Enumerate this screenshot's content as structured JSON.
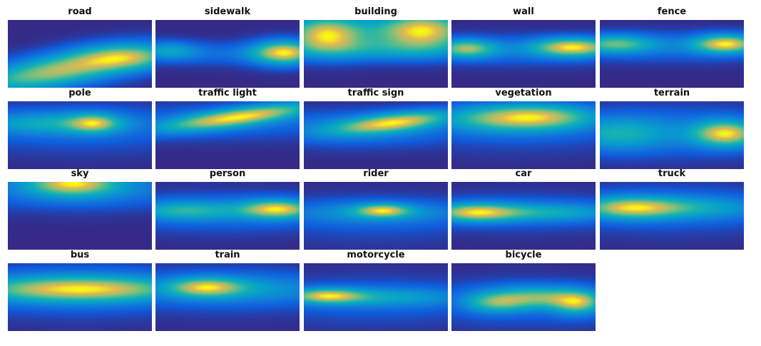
{
  "chart_data": {
    "type": "heatmap",
    "colormap": "parula",
    "value_range": [
      0,
      1
    ],
    "axes_visible": false,
    "panels": [
      {
        "title": "road",
        "blobs": [
          {
            "cx": 0.35,
            "cy": 0.75,
            "sx": 0.45,
            "sy": 0.18,
            "slope": -0.35,
            "a": 1.0
          },
          {
            "cx": 0.85,
            "cy": 0.55,
            "sx": 0.25,
            "sy": 0.14,
            "a": 0.6
          }
        ]
      },
      {
        "title": "sidewalk",
        "blobs": [
          {
            "cx": 0.9,
            "cy": 0.48,
            "sx": 0.16,
            "sy": 0.13,
            "a": 1.0
          },
          {
            "cx": 0.08,
            "cy": 0.45,
            "sx": 0.15,
            "sy": 0.1,
            "a": 0.45
          },
          {
            "cx": 0.5,
            "cy": 0.5,
            "sx": 0.5,
            "sy": 0.12,
            "a": 0.25
          }
        ]
      },
      {
        "title": "building",
        "blobs": [
          {
            "cx": 0.15,
            "cy": 0.2,
            "sx": 0.2,
            "sy": 0.2,
            "a": 0.95
          },
          {
            "cx": 0.82,
            "cy": 0.15,
            "sx": 0.25,
            "sy": 0.2,
            "a": 1.0
          },
          {
            "cx": 0.5,
            "cy": 0.45,
            "sx": 0.6,
            "sy": 0.12,
            "a": 0.35
          }
        ]
      },
      {
        "title": "wall",
        "blobs": [
          {
            "cx": 0.85,
            "cy": 0.4,
            "sx": 0.2,
            "sy": 0.1,
            "a": 1.0
          },
          {
            "cx": 0.1,
            "cy": 0.42,
            "sx": 0.15,
            "sy": 0.1,
            "a": 0.8
          },
          {
            "cx": 0.5,
            "cy": 0.45,
            "sx": 0.6,
            "sy": 0.15,
            "a": 0.3
          }
        ]
      },
      {
        "title": "fence",
        "blobs": [
          {
            "cx": 0.88,
            "cy": 0.35,
            "sx": 0.16,
            "sy": 0.1,
            "a": 1.0
          },
          {
            "cx": 0.1,
            "cy": 0.35,
            "sx": 0.2,
            "sy": 0.1,
            "a": 0.7
          },
          {
            "cx": 0.5,
            "cy": 0.4,
            "sx": 0.6,
            "sy": 0.15,
            "a": 0.3
          }
        ]
      },
      {
        "title": "pole",
        "blobs": [
          {
            "cx": 0.6,
            "cy": 0.32,
            "sx": 0.12,
            "sy": 0.1,
            "a": 1.0
          },
          {
            "cx": 0.3,
            "cy": 0.32,
            "sx": 0.4,
            "sy": 0.12,
            "a": 0.75
          },
          {
            "cx": 0.5,
            "cy": 0.4,
            "sx": 0.7,
            "sy": 0.25,
            "a": 0.4
          }
        ]
      },
      {
        "title": "traffic light",
        "blobs": [
          {
            "cx": 0.6,
            "cy": 0.22,
            "sx": 0.4,
            "sy": 0.1,
            "slope": -0.3,
            "a": 1.0
          },
          {
            "cx": 0.5,
            "cy": 0.3,
            "sx": 0.7,
            "sy": 0.18,
            "a": 0.3
          }
        ]
      },
      {
        "title": "traffic sign",
        "blobs": [
          {
            "cx": 0.65,
            "cy": 0.3,
            "sx": 0.3,
            "sy": 0.1,
            "slope": -0.25,
            "a": 1.0
          },
          {
            "cx": 0.4,
            "cy": 0.4,
            "sx": 0.6,
            "sy": 0.18,
            "a": 0.45
          }
        ]
      },
      {
        "title": "vegetation",
        "blobs": [
          {
            "cx": 0.65,
            "cy": 0.22,
            "sx": 0.3,
            "sy": 0.14,
            "a": 1.0
          },
          {
            "cx": 0.3,
            "cy": 0.25,
            "sx": 0.35,
            "sy": 0.15,
            "a": 0.85
          },
          {
            "cx": 0.5,
            "cy": 0.4,
            "sx": 0.7,
            "sy": 0.25,
            "a": 0.3
          }
        ]
      },
      {
        "title": "terrain",
        "blobs": [
          {
            "cx": 0.88,
            "cy": 0.48,
            "sx": 0.16,
            "sy": 0.14,
            "a": 1.0
          },
          {
            "cx": 0.1,
            "cy": 0.48,
            "sx": 0.25,
            "sy": 0.18,
            "a": 0.5
          },
          {
            "cx": 0.5,
            "cy": 0.45,
            "sx": 0.6,
            "sy": 0.25,
            "a": 0.35
          }
        ]
      },
      {
        "title": "sky",
        "blobs": [
          {
            "cx": 0.45,
            "cy": 0.0,
            "sx": 0.22,
            "sy": 0.14,
            "a": 1.0
          },
          {
            "cx": 0.5,
            "cy": 0.1,
            "sx": 0.6,
            "sy": 0.2,
            "a": 0.5
          }
        ]
      },
      {
        "title": "person",
        "blobs": [
          {
            "cx": 0.85,
            "cy": 0.4,
            "sx": 0.18,
            "sy": 0.1,
            "a": 1.0
          },
          {
            "cx": 0.2,
            "cy": 0.42,
            "sx": 0.25,
            "sy": 0.1,
            "a": 0.55
          },
          {
            "cx": 0.5,
            "cy": 0.45,
            "sx": 0.7,
            "sy": 0.2,
            "a": 0.35
          }
        ]
      },
      {
        "title": "rider",
        "blobs": [
          {
            "cx": 0.55,
            "cy": 0.42,
            "sx": 0.13,
            "sy": 0.07,
            "a": 1.0
          },
          {
            "cx": 0.5,
            "cy": 0.45,
            "sx": 0.45,
            "sy": 0.12,
            "a": 0.55
          },
          {
            "cx": 0.5,
            "cy": 0.55,
            "sx": 0.7,
            "sy": 0.25,
            "a": 0.25
          }
        ]
      },
      {
        "title": "car",
        "blobs": [
          {
            "cx": 0.15,
            "cy": 0.45,
            "sx": 0.2,
            "sy": 0.1,
            "a": 1.0
          },
          {
            "cx": 0.6,
            "cy": 0.45,
            "sx": 0.45,
            "sy": 0.1,
            "a": 0.7
          },
          {
            "cx": 0.5,
            "cy": 0.45,
            "sx": 0.7,
            "sy": 0.2,
            "a": 0.3
          }
        ]
      },
      {
        "title": "truck",
        "blobs": [
          {
            "cx": 0.2,
            "cy": 0.38,
            "sx": 0.25,
            "sy": 0.12,
            "a": 1.0
          },
          {
            "cx": 0.7,
            "cy": 0.38,
            "sx": 0.35,
            "sy": 0.12,
            "a": 0.45
          },
          {
            "cx": 0.5,
            "cy": 0.4,
            "sx": 0.7,
            "sy": 0.25,
            "a": 0.3
          }
        ]
      },
      {
        "title": "bus",
        "blobs": [
          {
            "cx": 0.5,
            "cy": 0.38,
            "sx": 0.55,
            "sy": 0.14,
            "a": 1.0
          },
          {
            "cx": 0.5,
            "cy": 0.4,
            "sx": 0.7,
            "sy": 0.28,
            "a": 0.3
          }
        ]
      },
      {
        "title": "train",
        "blobs": [
          {
            "cx": 0.35,
            "cy": 0.35,
            "sx": 0.18,
            "sy": 0.1,
            "a": 1.0
          },
          {
            "cx": 0.5,
            "cy": 0.38,
            "sx": 0.6,
            "sy": 0.15,
            "a": 0.55
          },
          {
            "cx": 0.5,
            "cy": 0.4,
            "sx": 0.7,
            "sy": 0.25,
            "a": 0.3
          }
        ]
      },
      {
        "title": "motorcycle",
        "blobs": [
          {
            "cx": 0.15,
            "cy": 0.48,
            "sx": 0.18,
            "sy": 0.08,
            "a": 1.0
          },
          {
            "cx": 0.55,
            "cy": 0.5,
            "sx": 0.45,
            "sy": 0.1,
            "a": 0.55
          },
          {
            "cx": 0.5,
            "cy": 0.55,
            "sx": 0.7,
            "sy": 0.25,
            "a": 0.3
          }
        ]
      },
      {
        "title": "bicycle",
        "blobs": [
          {
            "cx": 0.6,
            "cy": 0.5,
            "sx": 0.3,
            "sy": 0.12,
            "a": 0.95
          },
          {
            "cx": 0.88,
            "cy": 0.6,
            "sx": 0.12,
            "sy": 0.12,
            "a": 0.85
          },
          {
            "cx": 0.3,
            "cy": 0.6,
            "sx": 0.15,
            "sy": 0.1,
            "a": 0.6
          },
          {
            "cx": 0.5,
            "cy": 0.6,
            "sx": 0.6,
            "sy": 0.25,
            "a": 0.3
          }
        ]
      }
    ]
  }
}
